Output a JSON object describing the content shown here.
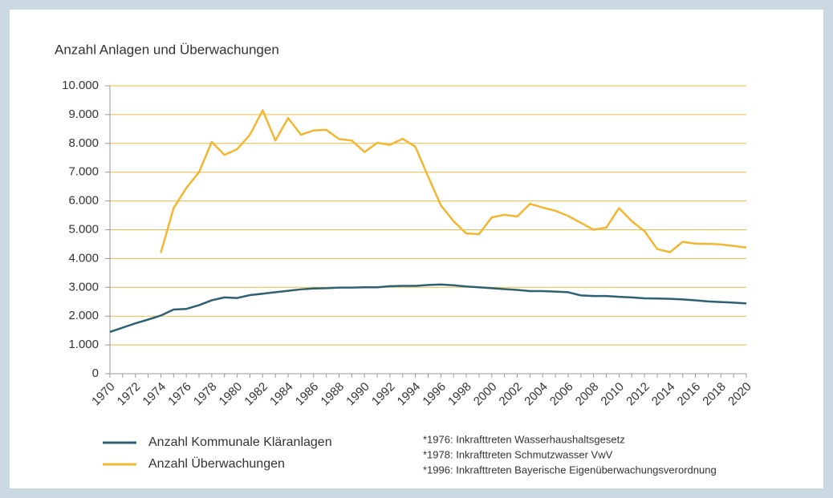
{
  "chart_data": {
    "type": "line",
    "ylabel": "Anzahl Anlagen und Überwachungen",
    "x": [
      1970,
      1971,
      1972,
      1973,
      1974,
      1975,
      1976,
      1977,
      1978,
      1979,
      1980,
      1981,
      1982,
      1983,
      1984,
      1985,
      1986,
      1987,
      1988,
      1989,
      1990,
      1991,
      1992,
      1993,
      1994,
      1995,
      1996,
      1997,
      1998,
      1999,
      2000,
      2001,
      2002,
      2003,
      2004,
      2005,
      2006,
      2007,
      2008,
      2009,
      2010,
      2011,
      2012,
      2013,
      2014,
      2015,
      2016,
      2017,
      2018,
      2019,
      2020
    ],
    "xlim": [
      1970,
      2020
    ],
    "xticks": [
      1970,
      1972,
      1974,
      1976,
      1978,
      1980,
      1982,
      1984,
      1986,
      1988,
      1990,
      1992,
      1994,
      1996,
      1998,
      2000,
      2002,
      2004,
      2006,
      2008,
      2010,
      2012,
      2014,
      2016,
      2018,
      2020
    ],
    "ylim": [
      0,
      10000
    ],
    "yticks": [
      0,
      {
        "value": 1000,
        "label": "1.000"
      },
      {
        "value": 2000,
        "label": "2.000"
      },
      {
        "value": 3000,
        "label": "3.000"
      },
      {
        "value": 4000,
        "label": "4.000"
      },
      {
        "value": 5000,
        "label": "5.000"
      },
      {
        "value": 6000,
        "label": "6.000"
      },
      {
        "value": 7000,
        "label": "7.000"
      },
      {
        "value": 8000,
        "label": "8.000"
      },
      {
        "value": 9000,
        "label": "9.000"
      },
      {
        "value": 10000,
        "label": "10.000"
      }
    ],
    "grid": true,
    "grid_color": "#edbb45",
    "series": [
      {
        "name": "Anzahl Kommunale Kläranlagen",
        "color": "#2f6072",
        "values": [
          1450,
          1600,
          1750,
          1880,
          2020,
          2230,
          2250,
          2380,
          2550,
          2650,
          2630,
          2730,
          2780,
          2830,
          2880,
          2930,
          2960,
          2970,
          2990,
          2990,
          3000,
          3000,
          3040,
          3050,
          3050,
          3080,
          3100,
          3070,
          3030,
          3000,
          2970,
          2940,
          2910,
          2870,
          2870,
          2850,
          2830,
          2720,
          2700,
          2700,
          2670,
          2650,
          2620,
          2610,
          2600,
          2580,
          2550,
          2510,
          2490,
          2470,
          2440
        ]
      },
      {
        "name": "Anzahl Überwachungen",
        "color": "#f2b630",
        "values": [
          null,
          null,
          null,
          null,
          4200,
          5750,
          6450,
          7000,
          8050,
          7600,
          7800,
          8300,
          9150,
          8100,
          8880,
          8300,
          8450,
          8470,
          8150,
          8100,
          7700,
          8020,
          7950,
          8160,
          7880,
          6850,
          5850,
          5300,
          4870,
          4850,
          5430,
          5520,
          5460,
          5900,
          5770,
          5660,
          5480,
          5240,
          5000,
          5080,
          5750,
          5300,
          4950,
          4330,
          4220,
          4580,
          4520,
          4510,
          4490,
          4440,
          4380
        ]
      }
    ],
    "annotations": [
      "*1976: Inkrafttreten Wasserhaushaltsgesetz",
      "*1978: Inkrafttreten Schmutzwasser VwV",
      "*1996: Inkrafttreten Bayerische Eigenüberwachungsverordnung"
    ]
  }
}
